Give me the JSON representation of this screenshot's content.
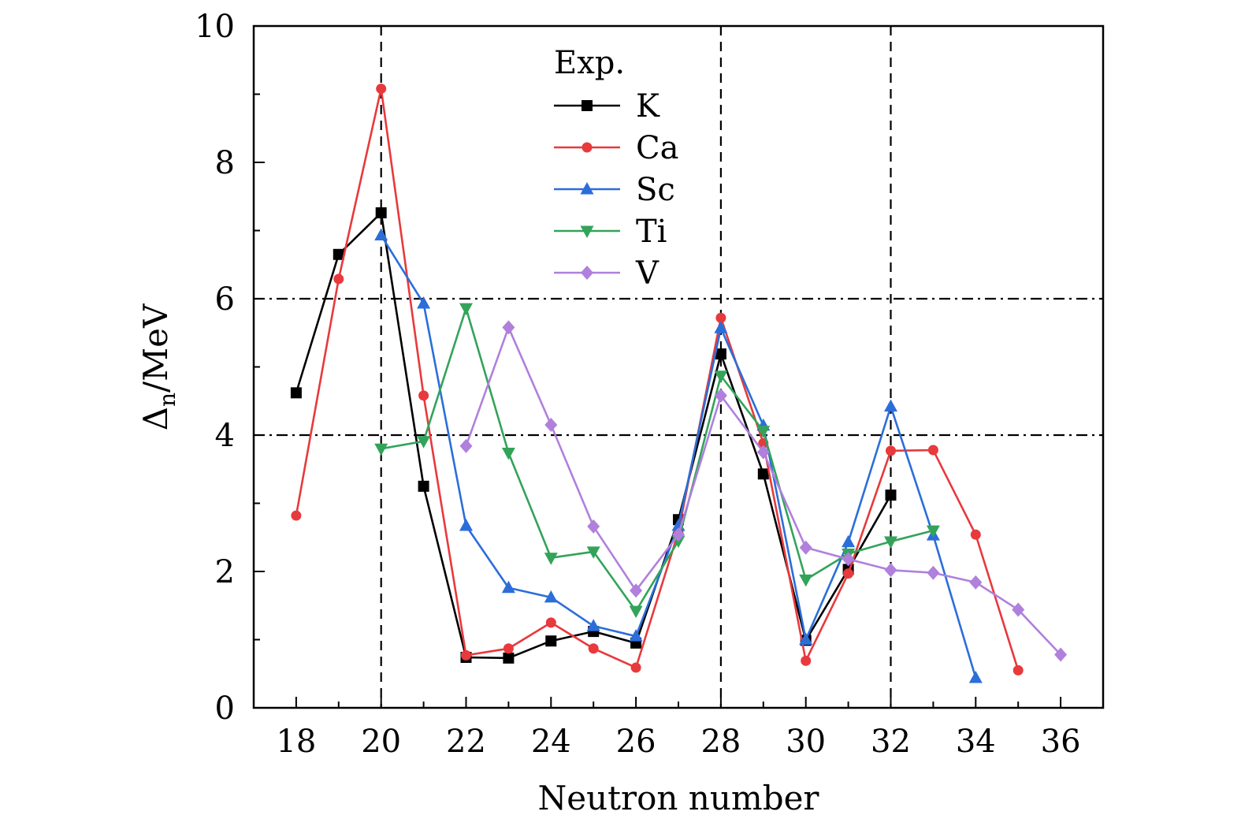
{
  "chart_data": {
    "type": "line",
    "xlabel": "Neutron number",
    "ylabel_main": "Δ",
    "ylabel_sub": "n",
    "ylabel_unit": "/MeV",
    "xlim": [
      17,
      37
    ],
    "ylim": [
      0,
      10
    ],
    "x_ticks": [
      18,
      20,
      22,
      24,
      26,
      28,
      30,
      32,
      34,
      36
    ],
    "y_ticks": [
      0,
      2,
      4,
      6,
      8,
      10
    ],
    "vertical_reference_lines": [
      20,
      28,
      32
    ],
    "horizontal_reference_lines": [
      4,
      6
    ],
    "legend": {
      "title": "Exp.",
      "position": "top-center"
    },
    "series": [
      {
        "name": "K",
        "color": "#000000",
        "marker": "square",
        "points": [
          [
            18,
            4.62
          ],
          [
            19,
            6.65
          ],
          [
            20,
            7.26
          ],
          [
            21,
            3.25
          ],
          [
            22,
            0.74
          ],
          [
            23,
            0.73
          ],
          [
            24,
            0.98
          ],
          [
            25,
            1.12
          ],
          [
            26,
            0.95
          ],
          [
            27,
            2.76
          ],
          [
            28,
            5.19
          ],
          [
            29,
            3.43
          ],
          [
            30,
            0.99
          ],
          [
            31,
            2.03
          ],
          [
            32,
            3.12
          ]
        ]
      },
      {
        "name": "Ca",
        "color": "#e8393c",
        "marker": "circle",
        "points": [
          [
            18,
            2.82
          ],
          [
            19,
            6.29
          ],
          [
            20,
            9.08
          ],
          [
            21,
            4.58
          ],
          [
            22,
            0.77
          ],
          [
            23,
            0.87
          ],
          [
            24,
            1.25
          ],
          [
            25,
            0.87
          ],
          [
            26,
            0.59
          ],
          [
            27,
            2.58
          ],
          [
            28,
            5.72
          ],
          [
            29,
            3.88
          ],
          [
            30,
            0.69
          ],
          [
            31,
            1.97
          ],
          [
            32,
            3.77
          ],
          [
            33,
            3.78
          ],
          [
            34,
            2.54
          ],
          [
            35,
            0.55
          ]
        ]
      },
      {
        "name": "Sc",
        "color": "#2b6ed9",
        "marker": "triangle-up",
        "points": [
          [
            20,
            6.93
          ],
          [
            21,
            5.93
          ],
          [
            22,
            2.67
          ],
          [
            23,
            1.76
          ],
          [
            24,
            1.62
          ],
          [
            25,
            1.2
          ],
          [
            26,
            1.05
          ],
          [
            27,
            2.67
          ],
          [
            28,
            5.57
          ],
          [
            29,
            4.14
          ],
          [
            30,
            1.0
          ],
          [
            31,
            2.43
          ],
          [
            32,
            4.42
          ],
          [
            33,
            2.53
          ],
          [
            34,
            0.44
          ]
        ]
      },
      {
        "name": "Ti",
        "color": "#33a35a",
        "marker": "triangle-down",
        "points": [
          [
            20,
            3.8
          ],
          [
            21,
            3.91
          ],
          [
            22,
            5.86
          ],
          [
            23,
            3.74
          ],
          [
            24,
            2.2
          ],
          [
            25,
            2.29
          ],
          [
            26,
            1.42
          ],
          [
            27,
            2.45
          ],
          [
            28,
            4.87
          ],
          [
            29,
            4.06
          ],
          [
            30,
            1.88
          ],
          [
            31,
            2.26
          ],
          [
            32,
            2.44
          ],
          [
            33,
            2.6
          ]
        ]
      },
      {
        "name": "V",
        "color": "#b080dc",
        "marker": "diamond",
        "points": [
          [
            22,
            3.84
          ],
          [
            23,
            5.58
          ],
          [
            24,
            4.15
          ],
          [
            25,
            2.66
          ],
          [
            26,
            1.72
          ],
          [
            27,
            2.54
          ],
          [
            28,
            4.58
          ],
          [
            29,
            3.75
          ],
          [
            30,
            2.35
          ],
          [
            31,
            2.18
          ],
          [
            32,
            2.02
          ],
          [
            33,
            1.98
          ],
          [
            34,
            1.84
          ],
          [
            35,
            1.44
          ],
          [
            36,
            0.78
          ]
        ]
      }
    ]
  }
}
